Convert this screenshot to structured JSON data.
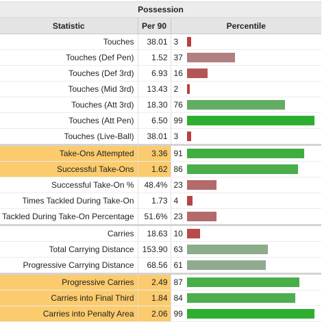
{
  "table": {
    "title": "Possession",
    "headers": {
      "statistic": "Statistic",
      "per90": "Per 90",
      "percentile": "Percentile"
    },
    "rows": [
      {
        "stat": "Touches",
        "per90": "38.01",
        "pct": 3,
        "color": "#b84040",
        "hl": false,
        "group_start": false
      },
      {
        "stat": "Touches (Def Pen)",
        "per90": "1.52",
        "pct": 37,
        "color": "#b08080",
        "hl": false,
        "group_start": false
      },
      {
        "stat": "Touches (Def 3rd)",
        "per90": "6.93",
        "pct": 16,
        "color": "#b45656",
        "hl": false,
        "group_start": false
      },
      {
        "stat": "Touches (Mid 3rd)",
        "per90": "13.43",
        "pct": 2,
        "color": "#b84040",
        "hl": false,
        "group_start": false
      },
      {
        "stat": "Touches (Att 3rd)",
        "per90": "18.30",
        "pct": 76,
        "color": "#62ad62",
        "hl": false,
        "group_start": false
      },
      {
        "stat": "Touches (Att Pen)",
        "per90": "6.50",
        "pct": 99,
        "color": "#2eae2e",
        "hl": false,
        "group_start": false
      },
      {
        "stat": "Touches (Live-Ball)",
        "per90": "38.01",
        "pct": 3,
        "color": "#b84040",
        "hl": false,
        "group_start": false
      },
      {
        "stat": "Take-Ons Attempted",
        "per90": "3.36",
        "pct": 91,
        "color": "#3fae3f",
        "hl": true,
        "group_start": true
      },
      {
        "stat": "Successful Take-Ons",
        "per90": "1.62",
        "pct": 86,
        "color": "#4aae4a",
        "hl": true,
        "group_start": false
      },
      {
        "stat": "Successful Take-On %",
        "per90": "48.4%",
        "pct": 23,
        "color": "#b46a6a",
        "hl": false,
        "group_start": false
      },
      {
        "stat": "Times Tackled During Take-On",
        "per90": "1.73",
        "pct": 4,
        "color": "#b84444",
        "hl": false,
        "group_start": false
      },
      {
        "stat": "Tackled During Take-On Percentage",
        "per90": "51.6%",
        "pct": 23,
        "color": "#b46a6a",
        "hl": false,
        "group_start": false
      },
      {
        "stat": "Carries",
        "per90": "18.63",
        "pct": 10,
        "color": "#b84a4a",
        "hl": false,
        "group_start": true
      },
      {
        "stat": "Total Carrying Distance",
        "per90": "153.90",
        "pct": 63,
        "color": "#8cac8c",
        "hl": false,
        "group_start": false
      },
      {
        "stat": "Progressive Carrying Distance",
        "per90": "68.56",
        "pct": 61,
        "color": "#90aa90",
        "hl": false,
        "group_start": false
      },
      {
        "stat": "Progressive Carries",
        "per90": "2.49",
        "pct": 87,
        "color": "#48ae48",
        "hl": true,
        "group_start": true
      },
      {
        "stat": "Carries into Final Third",
        "per90": "1.84",
        "pct": 84,
        "color": "#4eae4e",
        "hl": true,
        "group_start": false
      },
      {
        "stat": "Carries into Penalty Area",
        "per90": "2.06",
        "pct": 99,
        "color": "#2eae2e",
        "hl": true,
        "group_start": false
      }
    ]
  }
}
